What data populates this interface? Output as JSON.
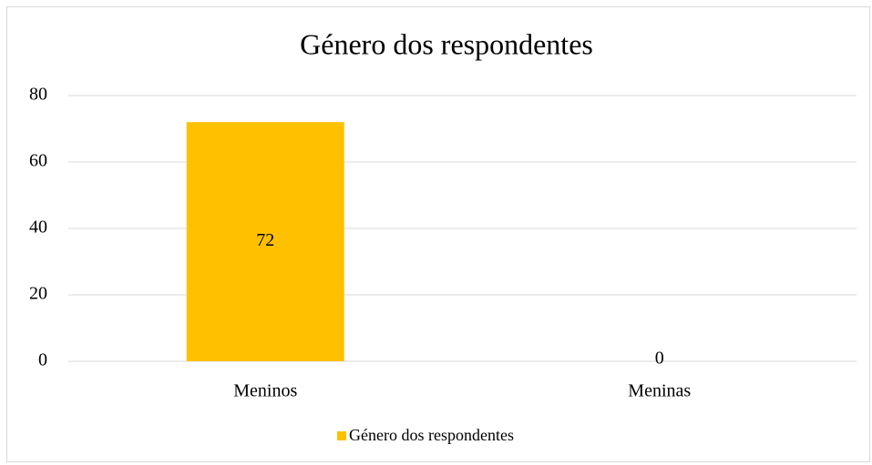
{
  "chart_data": {
    "type": "bar",
    "title": "Género dos respondentes",
    "categories": [
      "Meninos",
      "Meninas"
    ],
    "series": [
      {
        "name": "Género dos respondentes",
        "color": "#ffc000",
        "values": [
          72,
          0
        ]
      }
    ],
    "ylim": [
      0,
      80
    ],
    "yticks": [
      0,
      20,
      40,
      60,
      80
    ],
    "grid": true,
    "legend": "bottom",
    "data_labels": true
  }
}
